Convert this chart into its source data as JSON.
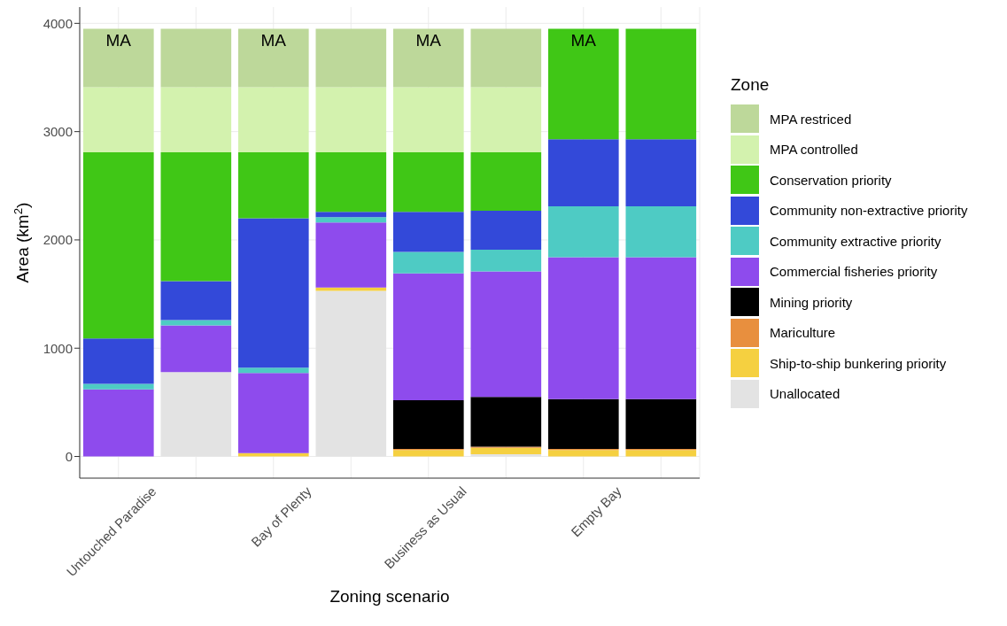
{
  "chart_data": {
    "type": "bar",
    "stacked": true,
    "xlabel": "Zoning scenario",
    "ylabel": "Area (km$^{2}$)",
    "legend_title": "Zone",
    "legend": "right",
    "grid": true,
    "categories": [
      "Untouched Paradise",
      null,
      "Bay of Plenty",
      null,
      "Business as Usual",
      null,
      "Empty Bay",
      null
    ],
    "ylim": [
      -200,
      4150
    ],
    "yticks": [
      0,
      1000,
      2000,
      3000,
      4000
    ],
    "series": [
      {
        "name": "Unallocated",
        "color": "#e3e3e3",
        "values": [
          0,
          780,
          0,
          1530,
          0,
          20,
          0,
          0
        ]
      },
      {
        "name": "Ship-to-ship bunkering priority",
        "color": "#f5d040",
        "values": [
          0,
          0,
          30,
          30,
          60,
          60,
          60,
          60
        ]
      },
      {
        "name": "Mariculture",
        "color": "#e88f3e",
        "values": [
          0,
          0,
          0,
          0,
          10,
          10,
          10,
          10
        ]
      },
      {
        "name": "Mining priority",
        "color": "#000000",
        "values": [
          0,
          0,
          0,
          0,
          450,
          460,
          460,
          460
        ]
      },
      {
        "name": "Commercial fisheries priority",
        "color": "#8e4bed",
        "values": [
          620,
          430,
          740,
          600,
          1170,
          1160,
          1310,
          1310
        ]
      },
      {
        "name": "Community extractive priority",
        "color": "#4ecbc4",
        "values": [
          50,
          50,
          50,
          50,
          200,
          200,
          470,
          470
        ]
      },
      {
        "name": "Community non-extractive priority",
        "color": "#3349d9",
        "values": [
          420,
          360,
          1380,
          50,
          370,
          360,
          620,
          620
        ]
      },
      {
        "name": "Conservation priority",
        "color": "#40c716",
        "values": [
          1720,
          1190,
          610,
          550,
          550,
          540,
          1020,
          1020
        ]
      },
      {
        "name": "MPA controlled",
        "color": "#d3f2ae",
        "values": [
          600,
          600,
          600,
          600,
          600,
          600,
          null,
          null
        ]
      },
      {
        "name": "MPA restriced",
        "color": "#bdd89a",
        "values": [
          540,
          540,
          540,
          540,
          540,
          540,
          null,
          null
        ]
      }
    ],
    "annotations": [
      {
        "text": "MA",
        "x": "Untouched Paradise",
        "y": 3950
      },
      {
        "text": "MA",
        "x": "Bay of Plenty",
        "y": 3950
      },
      {
        "text": "MA",
        "x": "Business as Usual",
        "y": 3950
      },
      {
        "text": "MA",
        "x": "Empty Bay",
        "y": 3950
      }
    ]
  }
}
